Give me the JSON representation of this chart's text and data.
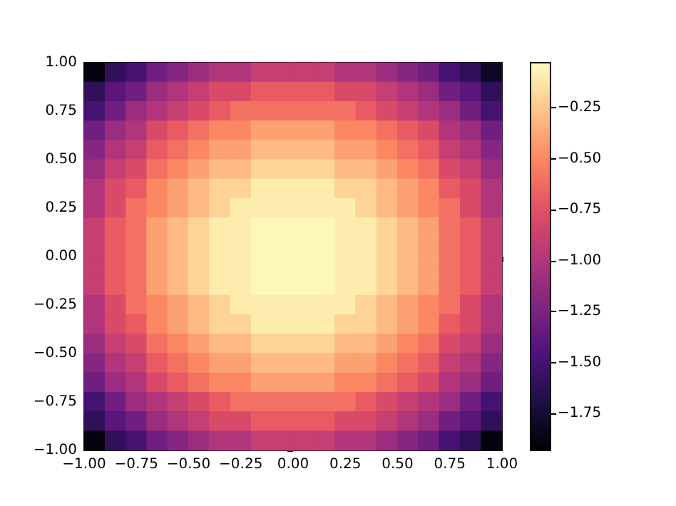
{
  "chart_data": {
    "type": "heatmap",
    "cells": [
      [
        -1.9,
        -1.6,
        -1.5,
        -1.3,
        -1.2,
        -1.1,
        -1.0,
        -1.0,
        -0.9,
        -0.9,
        -0.9,
        -0.9,
        -1.0,
        -1.0,
        -1.1,
        -1.2,
        -1.3,
        -1.5,
        -1.6,
        -1.8
      ],
      [
        -1.6,
        -1.4,
        -1.3,
        -1.1,
        -1.0,
        -0.9,
        -0.8,
        -0.8,
        -0.7,
        -0.7,
        -0.7,
        -0.7,
        -0.8,
        -0.8,
        -0.9,
        -1.0,
        -1.1,
        -1.3,
        -1.4,
        -1.6
      ],
      [
        -1.5,
        -1.3,
        -1.1,
        -1.0,
        -0.9,
        -0.8,
        -0.7,
        -0.6,
        -0.6,
        -0.6,
        -0.6,
        -0.6,
        -0.6,
        -0.7,
        -0.8,
        -0.9,
        -1.0,
        -1.1,
        -1.3,
        -1.5
      ],
      [
        -1.3,
        -1.1,
        -1.0,
        -0.8,
        -0.7,
        -0.6,
        -0.5,
        -0.5,
        -0.4,
        -0.4,
        -0.4,
        -0.4,
        -0.5,
        -0.5,
        -0.6,
        -0.7,
        -0.8,
        -1.0,
        -1.1,
        -1.3
      ],
      [
        -1.2,
        -1.0,
        -0.9,
        -0.7,
        -0.6,
        -0.5,
        -0.4,
        -0.4,
        -0.3,
        -0.3,
        -0.3,
        -0.3,
        -0.4,
        -0.4,
        -0.5,
        -0.6,
        -0.7,
        -0.9,
        -1.0,
        -1.2
      ],
      [
        -1.1,
        -0.9,
        -0.8,
        -0.6,
        -0.5,
        -0.4,
        -0.3,
        -0.3,
        -0.2,
        -0.2,
        -0.2,
        -0.2,
        -0.3,
        -0.3,
        -0.4,
        -0.5,
        -0.6,
        -0.8,
        -0.9,
        -1.1
      ],
      [
        -1.0,
        -0.8,
        -0.7,
        -0.5,
        -0.4,
        -0.3,
        -0.2,
        -0.2,
        -0.1,
        -0.1,
        -0.1,
        -0.1,
        -0.2,
        -0.2,
        -0.3,
        -0.4,
        -0.5,
        -0.7,
        -0.8,
        -1.0
      ],
      [
        -1.0,
        -0.8,
        -0.6,
        -0.5,
        -0.4,
        -0.3,
        -0.2,
        -0.1,
        -0.1,
        -0.1,
        -0.1,
        -0.1,
        -0.1,
        -0.2,
        -0.3,
        -0.4,
        -0.5,
        -0.6,
        -0.8,
        -1.0
      ],
      [
        -0.9,
        -0.7,
        -0.6,
        -0.4,
        -0.3,
        -0.2,
        -0.1,
        -0.1,
        -0.05,
        -0.05,
        -0.05,
        -0.05,
        -0.1,
        -0.1,
        -0.2,
        -0.3,
        -0.4,
        -0.6,
        -0.7,
        -0.9
      ],
      [
        -0.9,
        -0.7,
        -0.6,
        -0.4,
        -0.3,
        -0.2,
        -0.1,
        -0.1,
        -0.05,
        -0.05,
        -0.05,
        -0.05,
        -0.1,
        -0.1,
        -0.2,
        -0.3,
        -0.4,
        -0.6,
        -0.7,
        -0.9
      ],
      [
        -0.9,
        -0.7,
        -0.6,
        -0.4,
        -0.3,
        -0.2,
        -0.1,
        -0.1,
        -0.05,
        -0.05,
        -0.05,
        -0.05,
        -0.1,
        -0.1,
        -0.2,
        -0.3,
        -0.4,
        -0.6,
        -0.7,
        -0.9
      ],
      [
        -0.9,
        -0.7,
        -0.6,
        -0.4,
        -0.3,
        -0.2,
        -0.1,
        -0.1,
        -0.05,
        -0.05,
        -0.05,
        -0.05,
        -0.1,
        -0.1,
        -0.2,
        -0.3,
        -0.4,
        -0.6,
        -0.7,
        -0.9
      ],
      [
        -1.0,
        -0.8,
        -0.6,
        -0.5,
        -0.4,
        -0.3,
        -0.2,
        -0.1,
        -0.1,
        -0.1,
        -0.1,
        -0.1,
        -0.1,
        -0.2,
        -0.3,
        -0.4,
        -0.5,
        -0.6,
        -0.8,
        -1.0
      ],
      [
        -1.0,
        -0.8,
        -0.7,
        -0.5,
        -0.4,
        -0.3,
        -0.2,
        -0.2,
        -0.1,
        -0.1,
        -0.1,
        -0.1,
        -0.2,
        -0.2,
        -0.3,
        -0.4,
        -0.5,
        -0.7,
        -0.8,
        -1.0
      ],
      [
        -1.1,
        -0.9,
        -0.8,
        -0.6,
        -0.5,
        -0.4,
        -0.3,
        -0.3,
        -0.2,
        -0.2,
        -0.2,
        -0.2,
        -0.3,
        -0.3,
        -0.4,
        -0.5,
        -0.6,
        -0.8,
        -0.9,
        -1.1
      ],
      [
        -1.2,
        -1.0,
        -0.9,
        -0.7,
        -0.6,
        -0.5,
        -0.4,
        -0.4,
        -0.3,
        -0.3,
        -0.3,
        -0.3,
        -0.4,
        -0.4,
        -0.5,
        -0.6,
        -0.7,
        -0.9,
        -1.0,
        -1.2
      ],
      [
        -1.3,
        -1.1,
        -1.0,
        -0.8,
        -0.7,
        -0.6,
        -0.5,
        -0.5,
        -0.4,
        -0.4,
        -0.4,
        -0.4,
        -0.5,
        -0.5,
        -0.6,
        -0.7,
        -0.8,
        -1.0,
        -1.1,
        -1.3
      ],
      [
        -1.5,
        -1.3,
        -1.1,
        -1.0,
        -0.9,
        -0.8,
        -0.7,
        -0.6,
        -0.6,
        -0.6,
        -0.6,
        -0.6,
        -0.6,
        -0.7,
        -0.8,
        -0.9,
        -1.0,
        -1.1,
        -1.3,
        -1.5
      ],
      [
        -1.6,
        -1.4,
        -1.3,
        -1.1,
        -1.0,
        -0.9,
        -0.8,
        -0.8,
        -0.7,
        -0.7,
        -0.7,
        -0.7,
        -0.8,
        -0.8,
        -0.9,
        -1.0,
        -1.1,
        -1.3,
        -1.4,
        -1.6
      ],
      [
        -1.9,
        -1.6,
        -1.5,
        -1.3,
        -1.2,
        -1.1,
        -1.0,
        -1.0,
        -0.9,
        -0.9,
        -0.9,
        -0.9,
        -1.0,
        -1.0,
        -1.1,
        -1.2,
        -1.3,
        -1.5,
        -1.6,
        -1.9
      ]
    ],
    "xlim": [
      -1,
      1
    ],
    "ylim": [
      -1,
      1
    ],
    "xticks": [
      {
        "value": -1,
        "label": "−1.00"
      },
      {
        "value": -0.75,
        "label": "−0.75"
      },
      {
        "value": -0.5,
        "label": "−0.50"
      },
      {
        "value": -0.25,
        "label": "−0.25"
      },
      {
        "value": 0,
        "label": "0.00"
      },
      {
        "value": 0.25,
        "label": "0.25"
      },
      {
        "value": 0.5,
        "label": "0.50"
      },
      {
        "value": 0.75,
        "label": "0.75"
      },
      {
        "value": 1,
        "label": "1.00"
      }
    ],
    "yticks": [
      {
        "value": -1,
        "label": "−1.00"
      },
      {
        "value": -0.75,
        "label": "−0.75"
      },
      {
        "value": -0.5,
        "label": "−0.50"
      },
      {
        "value": -0.25,
        "label": "−0.25"
      },
      {
        "value": 0,
        "label": "0.00"
      },
      {
        "value": 0.25,
        "label": "0.25"
      },
      {
        "value": 0.5,
        "label": "0.50"
      },
      {
        "value": 0.75,
        "label": "0.75"
      },
      {
        "value": 1,
        "label": "1.00"
      }
    ],
    "clim": [
      -1.93,
      -0.03
    ],
    "cticks": [
      {
        "value": -1.75,
        "label": "−1.75"
      },
      {
        "value": -1.5,
        "label": "−1.50"
      },
      {
        "value": -1.25,
        "label": "−1.25"
      },
      {
        "value": -1,
        "label": "−1.00"
      },
      {
        "value": -0.75,
        "label": "−0.75"
      },
      {
        "value": -0.5,
        "label": "−0.50"
      },
      {
        "value": -0.25,
        "label": "−0.25"
      }
    ],
    "grid": false
  }
}
